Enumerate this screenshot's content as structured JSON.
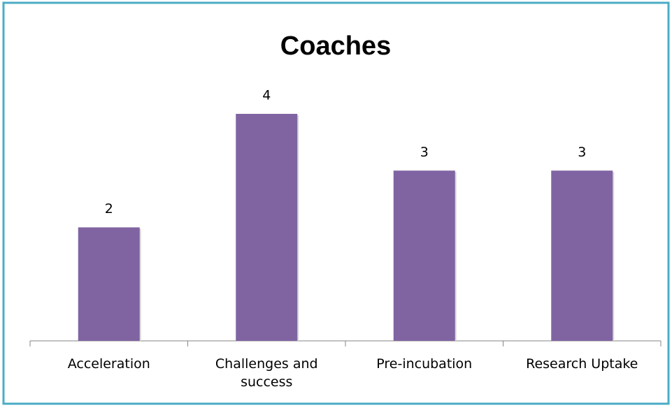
{
  "chart_data": {
    "type": "bar",
    "title": "Coaches",
    "categories": [
      "Acceleration",
      "Challenges and success",
      "Pre-incubation",
      "Research Uptake"
    ],
    "values": [
      2,
      4,
      3,
      3
    ],
    "color": "#8064a2"
  }
}
